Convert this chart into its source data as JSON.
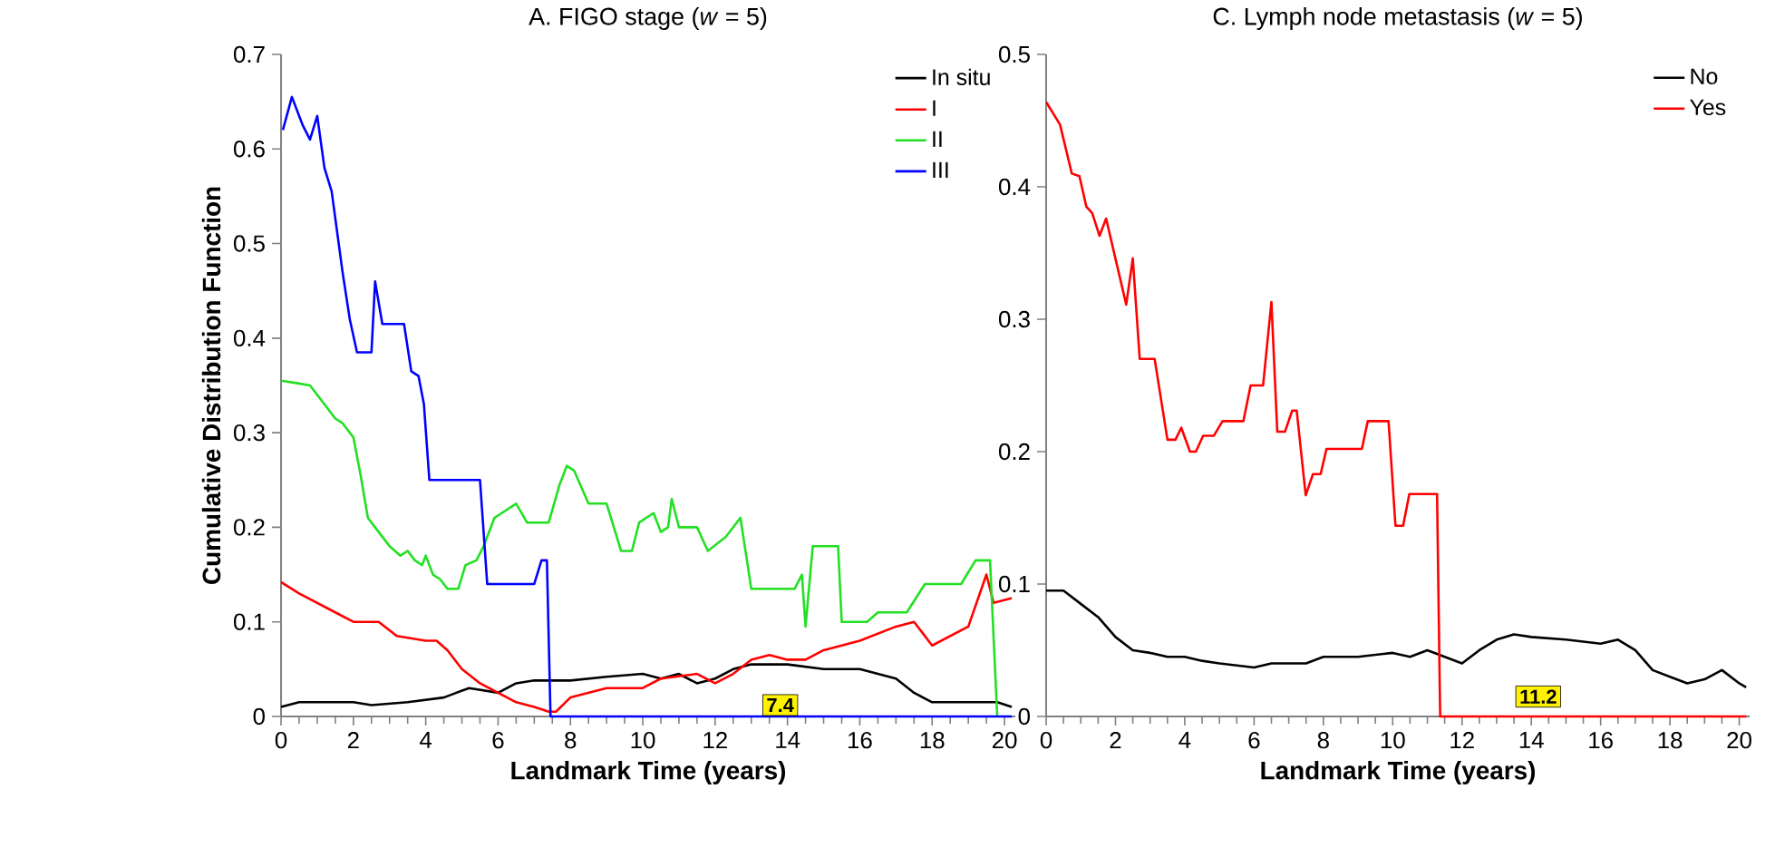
{
  "chart_data": [
    {
      "type": "line",
      "title": "A. FIGO  stage (*w* = 5)",
      "xlabel": "Landmark Time (years)",
      "ylabel": "Cumulative Distribution Function",
      "legend": "top right",
      "xlim": [
        0,
        20.3
      ],
      "xticks": [
        0,
        2,
        4,
        6,
        8,
        10,
        12,
        14,
        16,
        18,
        20
      ],
      "ylim": [
        0,
        0.7
      ],
      "yticks": [
        0,
        0.1,
        0.2,
        0.3,
        0.4,
        0.5,
        0.6,
        0.7
      ],
      "annotations": [
        {
          "text": "7.4",
          "x": 13.8,
          "y": 0.012
        }
      ],
      "series": [
        {
          "name": "In situ",
          "color": "#000000",
          "x": [
            0,
            0.5,
            2,
            2.5,
            3.5,
            4.5,
            5.2,
            6,
            6.5,
            7,
            8,
            9,
            10,
            10.5,
            11,
            11.5,
            12,
            12.5,
            13,
            14,
            15,
            16,
            17,
            17.5,
            18,
            19,
            19.8,
            20.2
          ],
          "values": [
            0.01,
            0.015,
            0.015,
            0.012,
            0.015,
            0.02,
            0.03,
            0.025,
            0.035,
            0.038,
            0.038,
            0.042,
            0.045,
            0.04,
            0.045,
            0.035,
            0.04,
            0.05,
            0.055,
            0.055,
            0.05,
            0.05,
            0.04,
            0.025,
            0.015,
            0.015,
            0.015,
            0.01
          ]
        },
        {
          "name": "I",
          "color": "#ff0000",
          "x": [
            0,
            0.5,
            1,
            1.5,
            2,
            2.7,
            3.2,
            4.0,
            4.3,
            4.6,
            5,
            5.5,
            6,
            6.5,
            7,
            7.4,
            7.6,
            8,
            9,
            10,
            10.5,
            11.5,
            12,
            12.5,
            13,
            13.5,
            14,
            14.5,
            15,
            16,
            17,
            17.5,
            18,
            18.5,
            19,
            19.5,
            19.7,
            20.2
          ],
          "values": [
            0.142,
            0.13,
            0.12,
            0.11,
            0.1,
            0.1,
            0.085,
            0.08,
            0.08,
            0.07,
            0.05,
            0.035,
            0.025,
            0.015,
            0.01,
            0.005,
            0.005,
            0.02,
            0.03,
            0.03,
            0.04,
            0.045,
            0.035,
            0.045,
            0.06,
            0.065,
            0.06,
            0.06,
            0.07,
            0.08,
            0.095,
            0.1,
            0.075,
            0.085,
            0.095,
            0.15,
            0.12,
            0.125
          ]
        },
        {
          "name": "II",
          "color": "#22e022",
          "x": [
            0,
            0.5,
            0.8,
            1.2,
            1.5,
            1.7,
            2.0,
            2.2,
            2.4,
            2.7,
            3.0,
            3.3,
            3.5,
            3.7,
            3.9,
            4.0,
            4.2,
            4.4,
            4.6,
            4.9,
            5.1,
            5.4,
            5.6,
            5.9,
            6.1,
            6.5,
            6.8,
            7.4,
            7.7,
            7.9,
            8.1,
            8.5,
            9.0,
            9.4,
            9.7,
            9.9,
            10.3,
            10.5,
            10.7,
            10.8,
            11.0,
            11.5,
            11.8,
            12.3,
            12.7,
            13.0,
            14.2,
            14.4,
            14.5,
            14.7,
            15.4,
            15.5,
            16.2,
            16.5,
            17.3,
            17.8,
            18.8,
            19.2,
            19.6,
            19.8
          ],
          "values": [
            0.355,
            0.352,
            0.35,
            0.33,
            0.315,
            0.31,
            0.295,
            0.255,
            0.21,
            0.195,
            0.18,
            0.17,
            0.175,
            0.165,
            0.16,
            0.17,
            0.15,
            0.145,
            0.135,
            0.135,
            0.16,
            0.165,
            0.18,
            0.21,
            0.215,
            0.225,
            0.205,
            0.205,
            0.245,
            0.265,
            0.26,
            0.225,
            0.225,
            0.175,
            0.175,
            0.205,
            0.215,
            0.195,
            0.2,
            0.23,
            0.2,
            0.2,
            0.175,
            0.19,
            0.21,
            0.135,
            0.135,
            0.15,
            0.095,
            0.18,
            0.18,
            0.1,
            0.1,
            0.11,
            0.11,
            0.14,
            0.14,
            0.165,
            0.165,
            0.0
          ]
        },
        {
          "name": "III",
          "color": "#0000ff",
          "x": [
            0.05,
            0.3,
            0.6,
            0.8,
            1.0,
            1.2,
            1.4,
            1.7,
            1.9,
            2.1,
            2.5,
            2.6,
            2.8,
            3.4,
            3.6,
            3.8,
            3.95,
            4.1,
            5.5,
            5.7,
            7.0,
            7.2,
            7.35,
            7.45,
            20.2
          ],
          "values": [
            0.62,
            0.655,
            0.625,
            0.61,
            0.635,
            0.58,
            0.555,
            0.47,
            0.42,
            0.385,
            0.385,
            0.46,
            0.415,
            0.415,
            0.365,
            0.36,
            0.33,
            0.25,
            0.25,
            0.14,
            0.14,
            0.165,
            0.165,
            0.0,
            0.0
          ]
        }
      ]
    },
    {
      "type": "line",
      "title": "C. Lymph node metastasis (*w* = 5)",
      "xlabel": "Landmark Time (years)",
      "legend": "top right",
      "xlim": [
        0,
        20.3
      ],
      "xticks": [
        0,
        2,
        4,
        6,
        8,
        10,
        12,
        14,
        16,
        18,
        20
      ],
      "ylim": [
        0,
        0.5
      ],
      "yticks": [
        0,
        0.1,
        0.2,
        0.3,
        0.4,
        0.5
      ],
      "annotations": [
        {
          "text": "11.2",
          "x": 14.2,
          "y": 0.015
        }
      ],
      "series": [
        {
          "name": "No",
          "color": "#000000",
          "x": [
            0,
            0.5,
            1,
            1.5,
            2,
            2.5,
            3,
            3.5,
            4,
            4.5,
            5,
            6,
            6.5,
            7.5,
            8,
            9,
            10,
            10.5,
            11,
            11.5,
            12,
            12.5,
            13,
            13.5,
            14,
            15,
            16,
            16.5,
            17,
            17.5,
            18,
            18.5,
            19,
            19.5,
            20,
            20.2
          ],
          "values": [
            0.095,
            0.095,
            0.085,
            0.075,
            0.06,
            0.05,
            0.048,
            0.045,
            0.045,
            0.042,
            0.04,
            0.037,
            0.04,
            0.04,
            0.045,
            0.045,
            0.048,
            0.045,
            0.05,
            0.045,
            0.04,
            0.05,
            0.058,
            0.062,
            0.06,
            0.058,
            0.055,
            0.058,
            0.05,
            0.035,
            0.03,
            0.025,
            0.028,
            0.035,
            0.025,
            0.022
          ]
        },
        {
          "name": "Yes",
          "color": "#ff0000",
          "x": [
            0,
            0.4,
            0.74,
            0.96,
            1.16,
            1.33,
            1.54,
            1.73,
            2.31,
            2.5,
            2.7,
            3.13,
            3.5,
            3.73,
            3.9,
            4.15,
            4.32,
            4.53,
            4.84,
            5.09,
            5.69,
            5.9,
            6.26,
            6.5,
            6.67,
            6.89,
            7.1,
            7.23,
            7.49,
            7.7,
            7.92,
            8.09,
            9.11,
            9.28,
            9.88,
            10.08,
            10.3,
            10.48,
            11.28,
            11.37,
            20.2
          ],
          "values": [
            0.464,
            0.447,
            0.41,
            0.408,
            0.385,
            0.38,
            0.363,
            0.376,
            0.311,
            0.346,
            0.27,
            0.27,
            0.209,
            0.209,
            0.218,
            0.2,
            0.2,
            0.212,
            0.212,
            0.223,
            0.223,
            0.25,
            0.25,
            0.313,
            0.215,
            0.215,
            0.231,
            0.231,
            0.167,
            0.183,
            0.183,
            0.202,
            0.202,
            0.223,
            0.223,
            0.144,
            0.144,
            0.168,
            0.168,
            0.0,
            0.0
          ]
        }
      ]
    }
  ]
}
